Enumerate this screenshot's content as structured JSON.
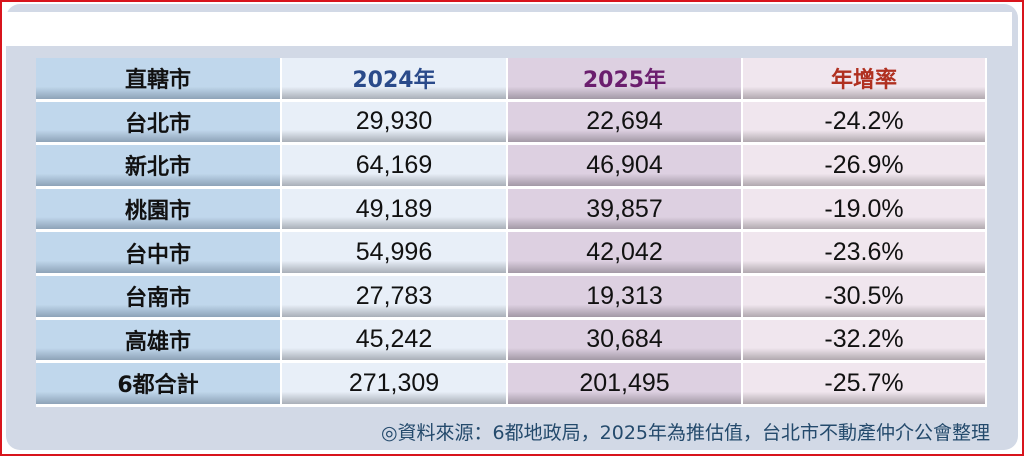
{
  "colors": {
    "frame": "#d8141c",
    "header_2024": "#2a4a8a",
    "header_2025": "#6b1e6e",
    "header_growth": "#b03020"
  },
  "table": {
    "headers": [
      "直轄市",
      "2024年",
      "2025年",
      "年增率"
    ],
    "rows": [
      [
        "台北市",
        "29,930",
        "22,694",
        "-24.2%"
      ],
      [
        "新北市",
        "64,169",
        "46,904",
        "-26.9%"
      ],
      [
        "桃園市",
        "49,189",
        "39,857",
        "-19.0%"
      ],
      [
        "台中市",
        "54,996",
        "42,042",
        "-23.6%"
      ],
      [
        "台南市",
        "27,783",
        "19,313",
        "-30.5%"
      ],
      [
        "高雄市",
        "45,242",
        "30,684",
        "-32.2%"
      ],
      [
        "6都合計",
        "271,309",
        "201,495",
        "-25.7%"
      ]
    ]
  },
  "caption": "◎資料來源：6都地政局，2025年為推估值，台北市不動產仲介公會整理"
}
